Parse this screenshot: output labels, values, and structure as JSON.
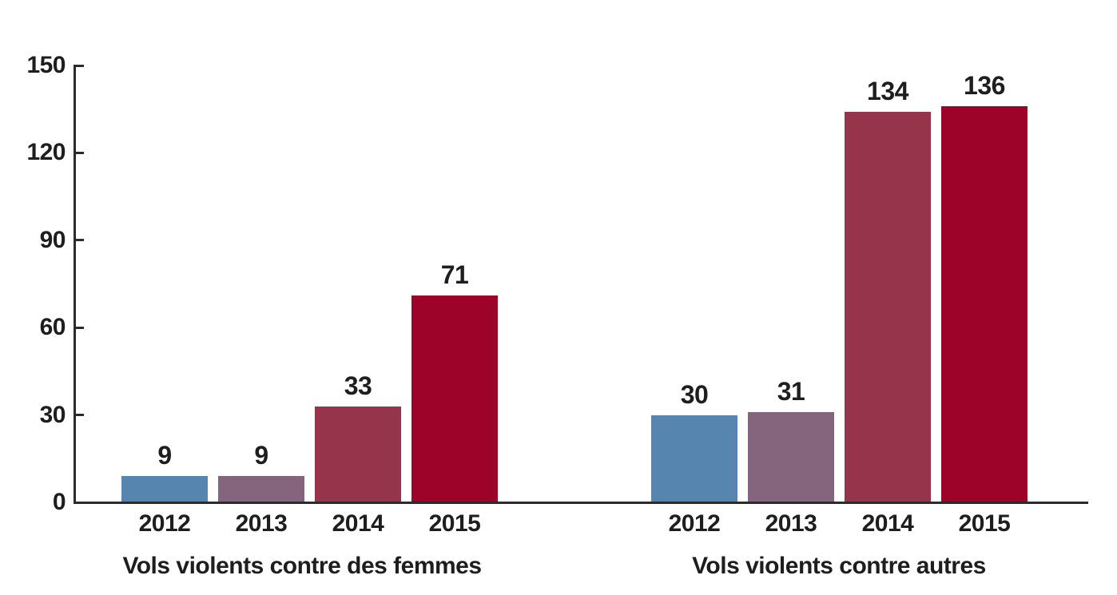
{
  "chart_data": {
    "type": "bar",
    "title": "",
    "xlabel": "",
    "ylabel": "",
    "ylim": [
      0,
      150
    ],
    "yticks": [
      0,
      30,
      60,
      90,
      120,
      150
    ],
    "ytick_labels": [
      "0",
      "30",
      "60",
      "90",
      "120",
      "150"
    ],
    "grid": false,
    "legend_position": "none",
    "categories": [
      "2012",
      "2013",
      "2014",
      "2015"
    ],
    "groups": [
      {
        "label": "Vols violents contre des femmes",
        "categories": [
          "2012",
          "2013",
          "2014",
          "2015"
        ],
        "values": [
          9,
          9,
          33,
          71
        ],
        "value_labels": [
          "9",
          "9",
          "33",
          "71"
        ]
      },
      {
        "label": "Vols violents contre autres",
        "categories": [
          "2012",
          "2013",
          "2014",
          "2015"
        ],
        "values": [
          30,
          31,
          134,
          136
        ],
        "value_labels": [
          "30",
          "31",
          "134",
          "136"
        ]
      }
    ],
    "bar_colors_by_year": {
      "2012": "#5685B0",
      "2013": "#85657D",
      "2014": "#95344A",
      "2015": "#9D0328"
    },
    "axis_color": "#2b2b2b",
    "text_color": "#1e1e1e",
    "background_color": "#ffffff"
  }
}
